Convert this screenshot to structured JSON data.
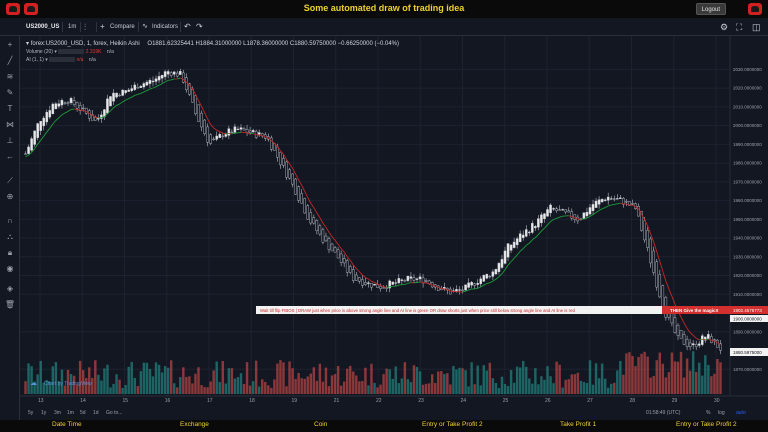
{
  "app": {
    "title": "Some automated draw of trading idea",
    "logout_label": "Logout"
  },
  "toolbar": {
    "symbol": "US2000_US",
    "interval": "1m",
    "compare_label": "Compare",
    "indicators_label": "Indicators"
  },
  "legend": {
    "main": "forex:US2000_USD, 1, forex, Heikin Ashi",
    "ohlc": "O1881.62325441  H1884.31000000  L1878.36000000  C1880.59750000  −0.66250000 (−0.04%)",
    "volume_label": "Volume (20)",
    "volume_value": "2.319K",
    "volume_na": "n/a",
    "ai_label": "AI (1, 1)",
    "ai_value": "n/a",
    "ai_na": "n/a"
  },
  "annotation": {
    "text": "Wait till flip FIBOS  |  DRAW just when  price is above strong angle line and AI line is green     OR     draw shorts just when price still below strong angle line and AI line is red",
    "magic_label": "THEN Give the magic!!"
  },
  "price_axis": {
    "labels": [
      "2030.0000000",
      "2020.0000000",
      "2010.0000000",
      "2000.0000000",
      "1990.0000000",
      "1980.0000000",
      "1970.0000000",
      "1960.0000000",
      "1950.0000000",
      "1940.0000000",
      "1930.0000000",
      "1920.0000000",
      "1910.0000000",
      "1890.0000000",
      "1870.0000000"
    ],
    "marker_red": "1902.4576773",
    "marker_last": "1900.0000000",
    "marker_close": "1880.5975000"
  },
  "time_axis": {
    "labels": [
      "13",
      "14",
      "15",
      "16",
      "17",
      "18",
      "19",
      "21",
      "22",
      "23",
      "24",
      "25",
      "26",
      "27",
      "28",
      "29",
      "30"
    ]
  },
  "chart_footer": {
    "ranges": [
      "5y",
      "1y",
      "3m",
      "1m",
      "5d",
      "1d",
      "Go to..."
    ],
    "time": "01:58:49 (UTC)",
    "pct": "%",
    "log": "log",
    "auto": "auto",
    "watermark": "Chart by TradingView"
  },
  "bottom_labels": [
    "Date Time",
    "Exchange",
    "Coin",
    "Entry or Take Profit 2",
    "Take Profit 1",
    "Entry or Take Profit 2"
  ],
  "colors": {
    "up": "#26a69a",
    "down": "#ef5350",
    "ai_green": "#1b9e3a",
    "ai_red": "#c62828",
    "banner_red": "#d32f2f",
    "accent_yellow": "#f0d030"
  },
  "chart_data": {
    "type": "candlestick",
    "candle_style": "Heikin Ashi",
    "x": [
      "13",
      "14",
      "15",
      "16",
      "17",
      "18",
      "19",
      "21",
      "22",
      "23",
      "24",
      "25",
      "26",
      "27",
      "28",
      "29",
      "30"
    ],
    "close_path": [
      1985,
      2003,
      2012,
      2014,
      2008,
      2002,
      2017,
      2018,
      2022,
      2024,
      2029,
      2027,
      2006,
      1990,
      1996,
      1998,
      1996,
      1994,
      1980,
      1966,
      1950,
      1939,
      1930,
      1919,
      1916,
      1914,
      1916,
      1918,
      1918,
      1914,
      1911,
      1913,
      1918,
      1922,
      1935,
      1942,
      1948,
      1956,
      1953,
      1950,
      1958,
      1962,
      1960,
      1956,
      1930,
      1902,
      1886,
      1882,
      1888,
      1881
    ],
    "volume_hint": "vertical bars along the bottom of the chart",
    "ylim": [
      1860,
      2035
    ],
    "price_labels": [
      2030,
      2020,
      2010,
      2000,
      1990,
      1980,
      1970,
      1960,
      1950,
      1940,
      1930,
      1920,
      1910,
      1890,
      1870
    ]
  }
}
